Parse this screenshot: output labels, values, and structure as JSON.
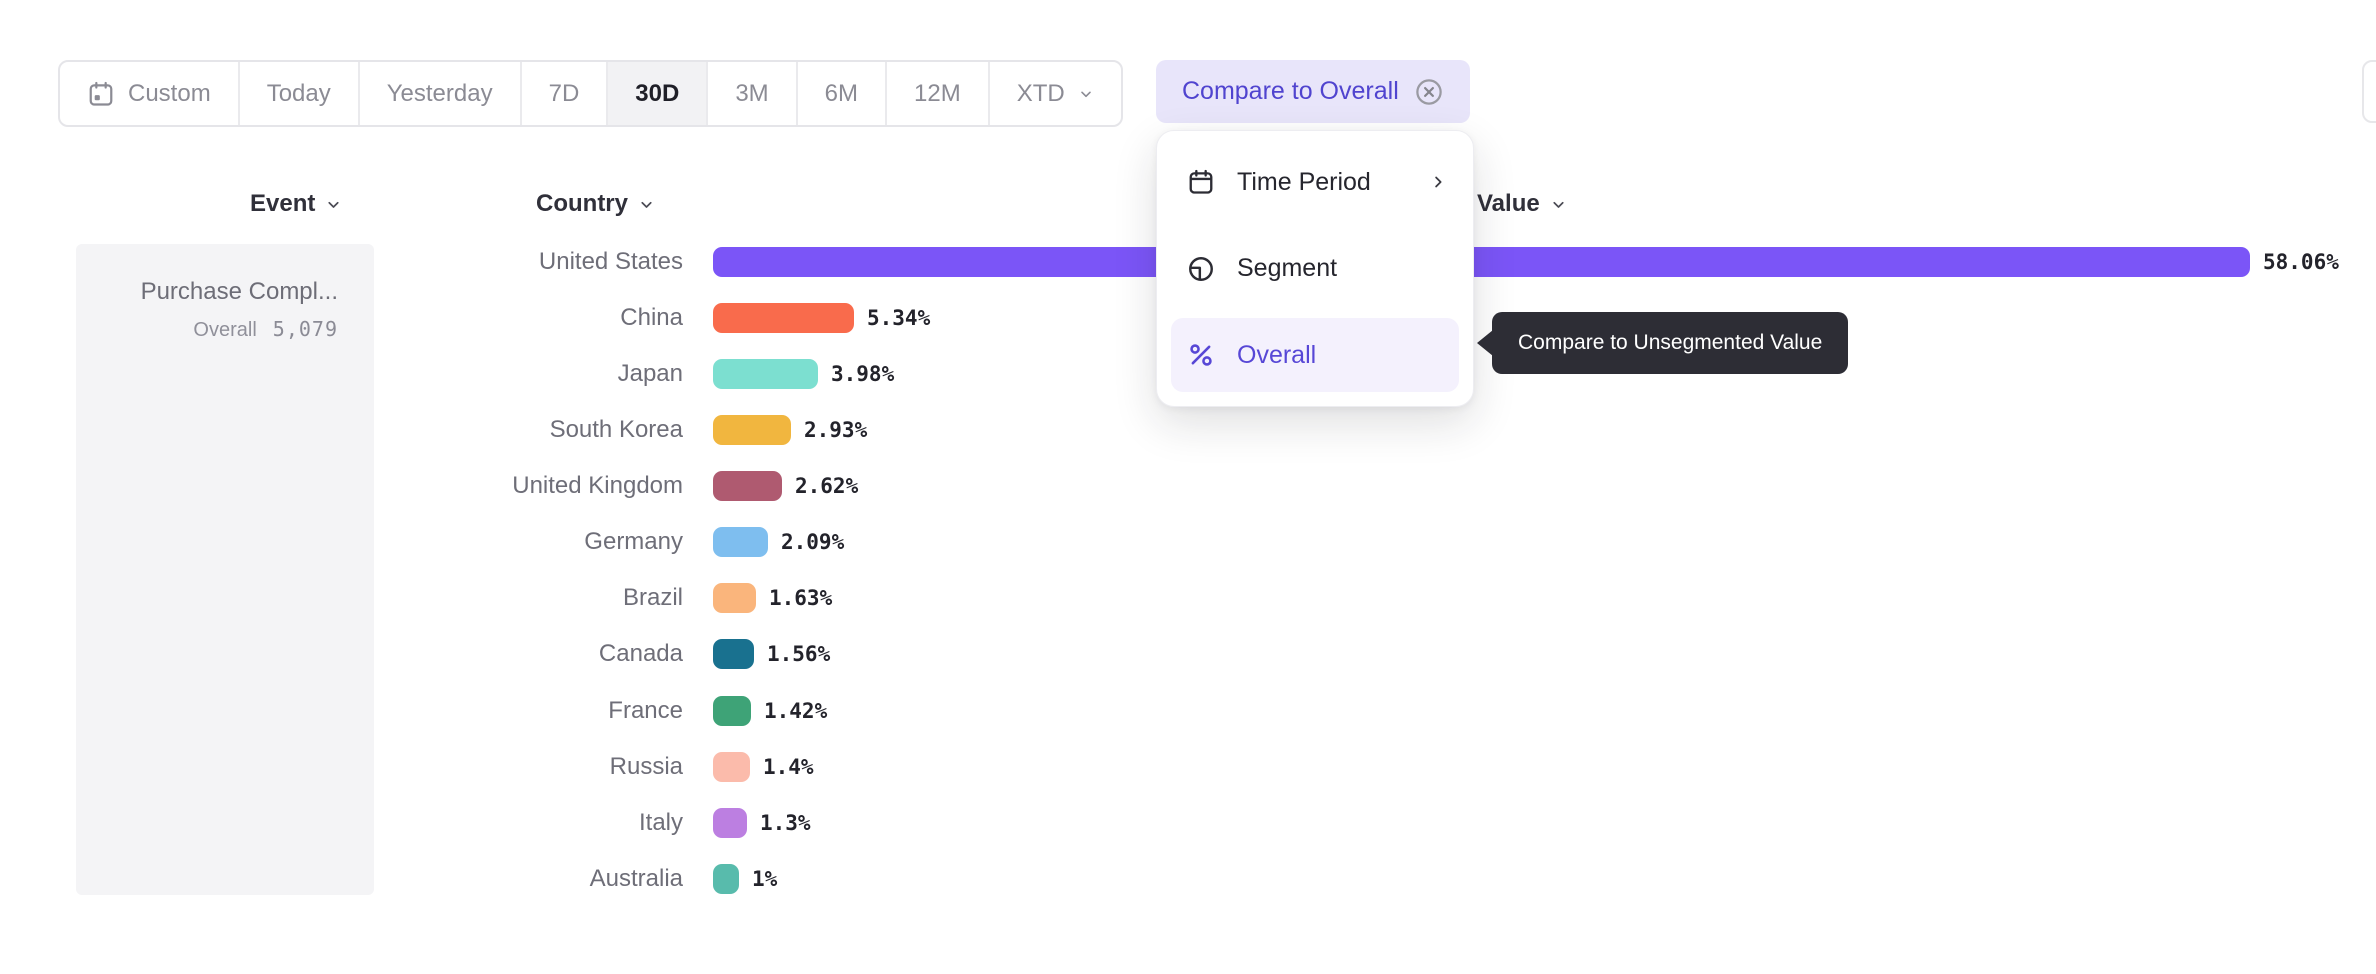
{
  "toolbar": {
    "buttons": [
      {
        "label": "Custom",
        "icon": "calendar"
      },
      {
        "label": "Today"
      },
      {
        "label": "Yesterday"
      },
      {
        "label": "7D"
      },
      {
        "label": "30D"
      },
      {
        "label": "3M"
      },
      {
        "label": "6M"
      },
      {
        "label": "12M"
      },
      {
        "label": "XTD",
        "chevron": true
      }
    ],
    "selected": "30D",
    "compare_label": "Compare to Overall"
  },
  "columns": {
    "event": "Event",
    "country": "Country",
    "value": "Value"
  },
  "event_panel": {
    "name": "Purchase Compl...",
    "overall_label": "Overall",
    "overall_value": "5,079"
  },
  "menu": {
    "items": [
      {
        "label": "Time Period",
        "icon": "calendar-period",
        "submenu": true
      },
      {
        "label": "Segment",
        "icon": "segment"
      },
      {
        "label": "Overall",
        "icon": "percent",
        "selected": true
      }
    ]
  },
  "tooltip": {
    "text": "Compare to Unsegmented Value"
  },
  "chart_data": {
    "type": "bar",
    "orientation": "horizontal",
    "title": "",
    "xlabel": "Value (%)",
    "ylabel": "Country",
    "xlim": [
      0,
      60
    ],
    "grid": false,
    "categories": [
      "United States",
      "China",
      "Japan",
      "South Korea",
      "United Kingdom",
      "Germany",
      "Brazil",
      "Canada",
      "France",
      "Russia",
      "Italy",
      "Australia"
    ],
    "values": [
      58.06,
      5.34,
      3.98,
      2.93,
      2.62,
      2.09,
      1.63,
      1.56,
      1.42,
      1.4,
      1.3,
      1.0
    ],
    "value_labels": [
      "58.06%",
      "5.34%",
      "3.98%",
      "2.93%",
      "2.62%",
      "2.09%",
      "1.63%",
      "1.56%",
      "1.42%",
      "1.4%",
      "1.3%",
      "1%"
    ],
    "bar_colors": [
      "#7B55F7",
      "#F96B4C",
      "#7CDFD0",
      "#F1B63F",
      "#AF5A70",
      "#7EBEEF",
      "#FAB57C",
      "#19718F",
      "#3EA377",
      "#FBBBAB",
      "#BC7FE1",
      "#58BBAC"
    ]
  },
  "colors": {
    "accent": "#5044cf",
    "compare_pill_bg": "#e8e5fa",
    "selected_menu_bg": "#f4f1fd",
    "tooltip_bg": "#2d2d35",
    "panel_bg": "#f4f4f6",
    "selected_period_bg": "#f2f2f4"
  }
}
